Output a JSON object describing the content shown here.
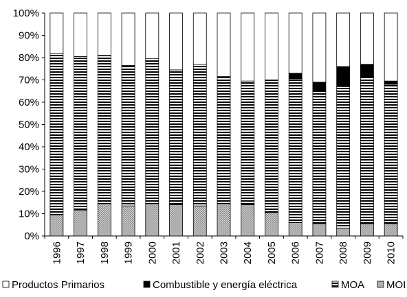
{
  "chart_data": {
    "type": "bar",
    "stacked": true,
    "percent": true,
    "categories": [
      "1996",
      "1997",
      "1998",
      "1999",
      "2000",
      "2001",
      "2002",
      "2003",
      "2004",
      "2005",
      "2006",
      "2007",
      "2008",
      "2009",
      "2010"
    ],
    "series": [
      {
        "name": "MOI",
        "fill": "dots",
        "values": [
          9.5,
          11.5,
          14.5,
          13.5,
          14.5,
          14,
          13.5,
          14.5,
          14,
          10.5,
          6,
          5.5,
          3.5,
          5.5,
          5.5
        ]
      },
      {
        "name": "MOA",
        "fill": "horizontal-stripes",
        "values": [
          72.5,
          69,
          66.5,
          63,
          65,
          60.5,
          63.5,
          57,
          55.5,
          59.5,
          64.5,
          59.5,
          63.5,
          66,
          62.5
        ]
      },
      {
        "name": "Combustible y energía eléctrica",
        "fill": "black",
        "values": [
          0,
          0,
          0,
          0,
          0,
          0,
          0,
          0,
          0,
          0,
          2.5,
          4,
          9,
          5.5,
          1.5
        ]
      },
      {
        "name": "Productos Primarios",
        "fill": "white",
        "values": [
          18,
          19.5,
          19,
          23.5,
          20.5,
          25.5,
          23,
          28.5,
          30.5,
          30,
          27,
          31,
          24,
          23,
          30.5
        ]
      }
    ],
    "y_ticks": [
      "0%",
      "10%",
      "20%",
      "30%",
      "40%",
      "50%",
      "60%",
      "70%",
      "80%",
      "90%",
      "100%"
    ],
    "ylim": [
      0,
      100
    ],
    "legend_order": [
      "Productos Primarios",
      "Combustible y energía eléctrica",
      "MOA",
      "MOI"
    ],
    "legend_position": "bottom",
    "grid": false,
    "colors": {
      "outline": "#000000",
      "dots": "#b0b0b0",
      "black": "#000000",
      "white": "#ffffff"
    }
  }
}
